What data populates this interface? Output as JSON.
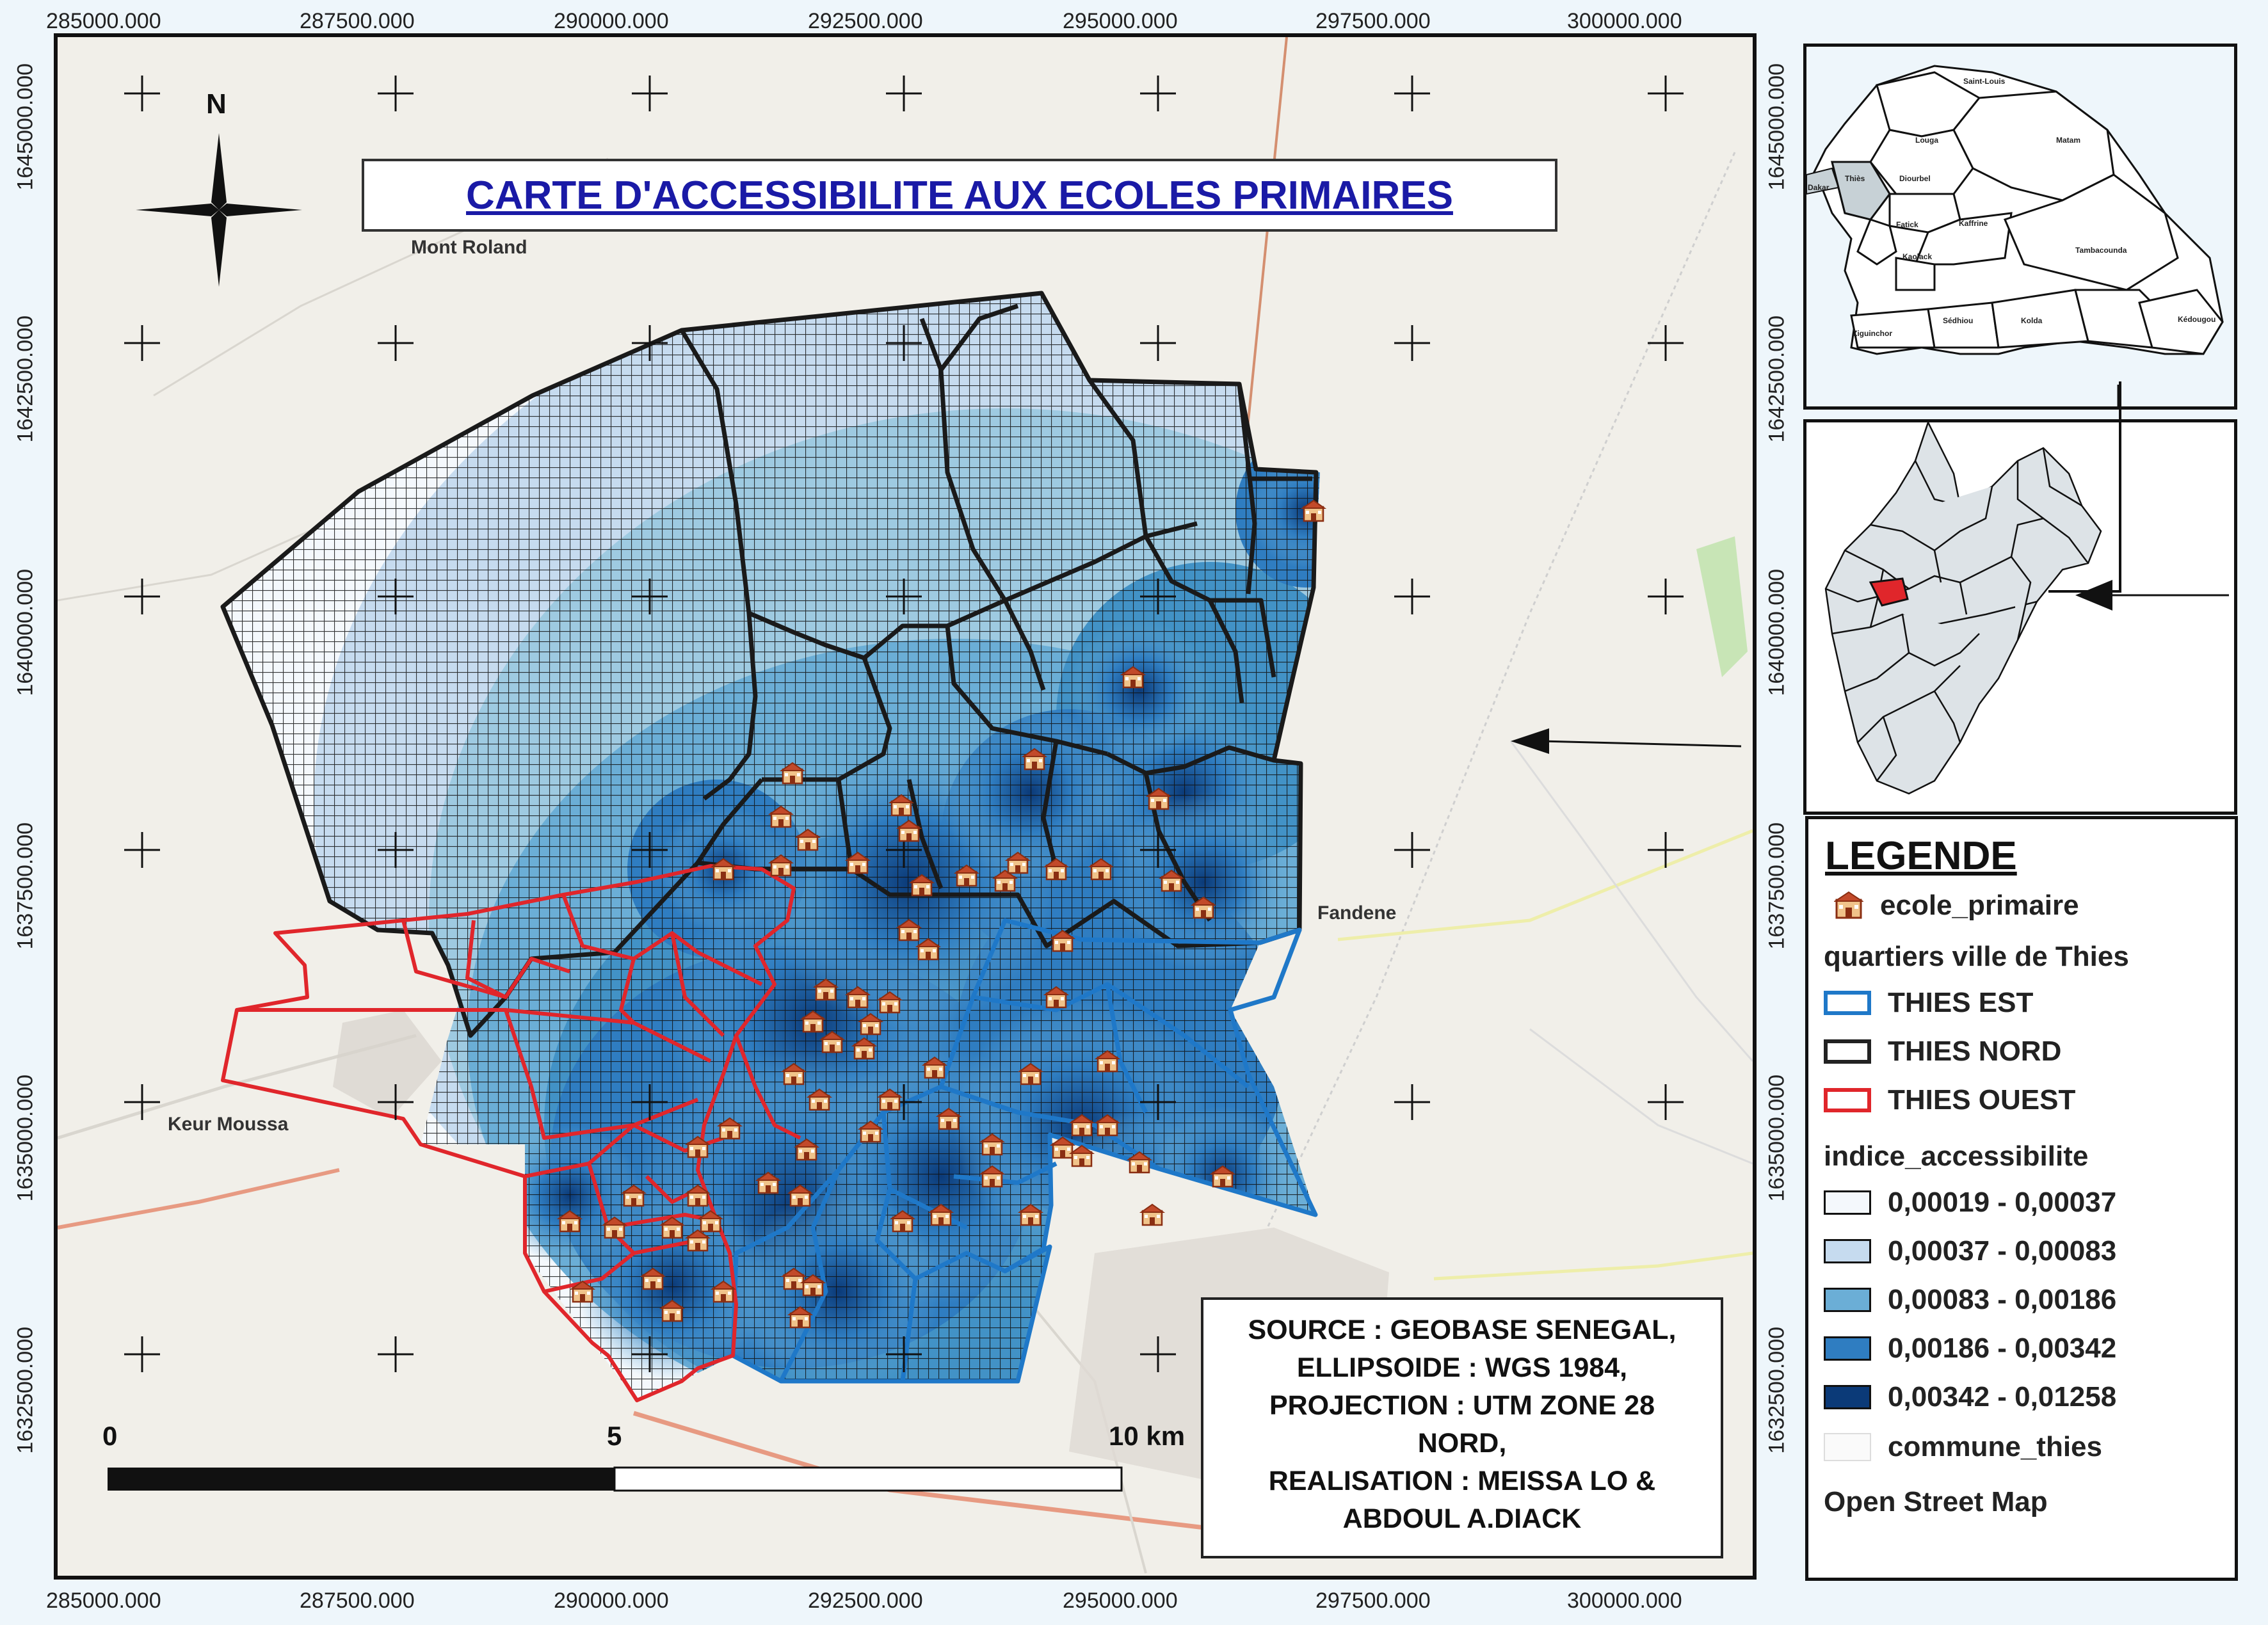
{
  "map": {
    "title": "CARTE D'ACCESSIBILITE AUX ECOLES PRIMAIRES",
    "north_label": "N",
    "x_ticks": [
      "285000.000",
      "287500.000",
      "290000.000",
      "292500.000",
      "295000.000",
      "297500.000",
      "300000.000"
    ],
    "y_ticks": [
      "1645000.000",
      "1642500.000",
      "1640000.000",
      "1637500.000",
      "1635000.000",
      "1632500.000"
    ],
    "places": {
      "mont_roland": "Mont Roland",
      "keur_moussa": "Keur Moussa",
      "fandene": "Fandene"
    },
    "scale": {
      "zero": "0",
      "mid": "5",
      "end": "10 km"
    },
    "source_lines": [
      "SOURCE : GEOBASE SENEGAL,",
      "ELLIPSOIDE : WGS 1984,",
      "PROJECTION : UTM ZONE 28",
      "NORD,",
      "REALISATION : MEISSA LO &",
      "ABDOUL A.DIACK"
    ],
    "colors": {
      "thies_est": "#1f78c8",
      "thies_nord": "#222222",
      "thies_ouest": "#e0262b",
      "class1": "#f4f8fc",
      "class2": "#c6dbef",
      "class3": "#6baed6",
      "class4": "#2f7dc1",
      "class5": "#0b3a78",
      "basemap": "#f1efe9"
    }
  },
  "inset_senegal": {
    "regions": [
      "Saint-Louis",
      "Louga",
      "Matam",
      "Thiès",
      "Diourbel",
      "Fatick",
      "Kaffrine",
      "Kaolack",
      "Tambacounda",
      "Ziguinchor",
      "Sédhiou",
      "Kolda",
      "Kédougou",
      "Dakar"
    ]
  },
  "legend": {
    "title": "LEGENDE",
    "school_label": "ecole_primaire",
    "quartiers_heading": "quartiers ville de Thies",
    "quartiers": [
      "THIES EST",
      "THIES NORD",
      "THIES OUEST"
    ],
    "indice_heading": "indice_accessibilite",
    "classes": [
      "0,00019 - 0,00037",
      "0,00037 - 0,00083",
      "0,00083 - 0,00186",
      "0,00186 - 0,00342",
      "0,00342 - 0,01258"
    ],
    "commune_label": "commune_thies",
    "basemap_label": "Open Street Map"
  }
}
